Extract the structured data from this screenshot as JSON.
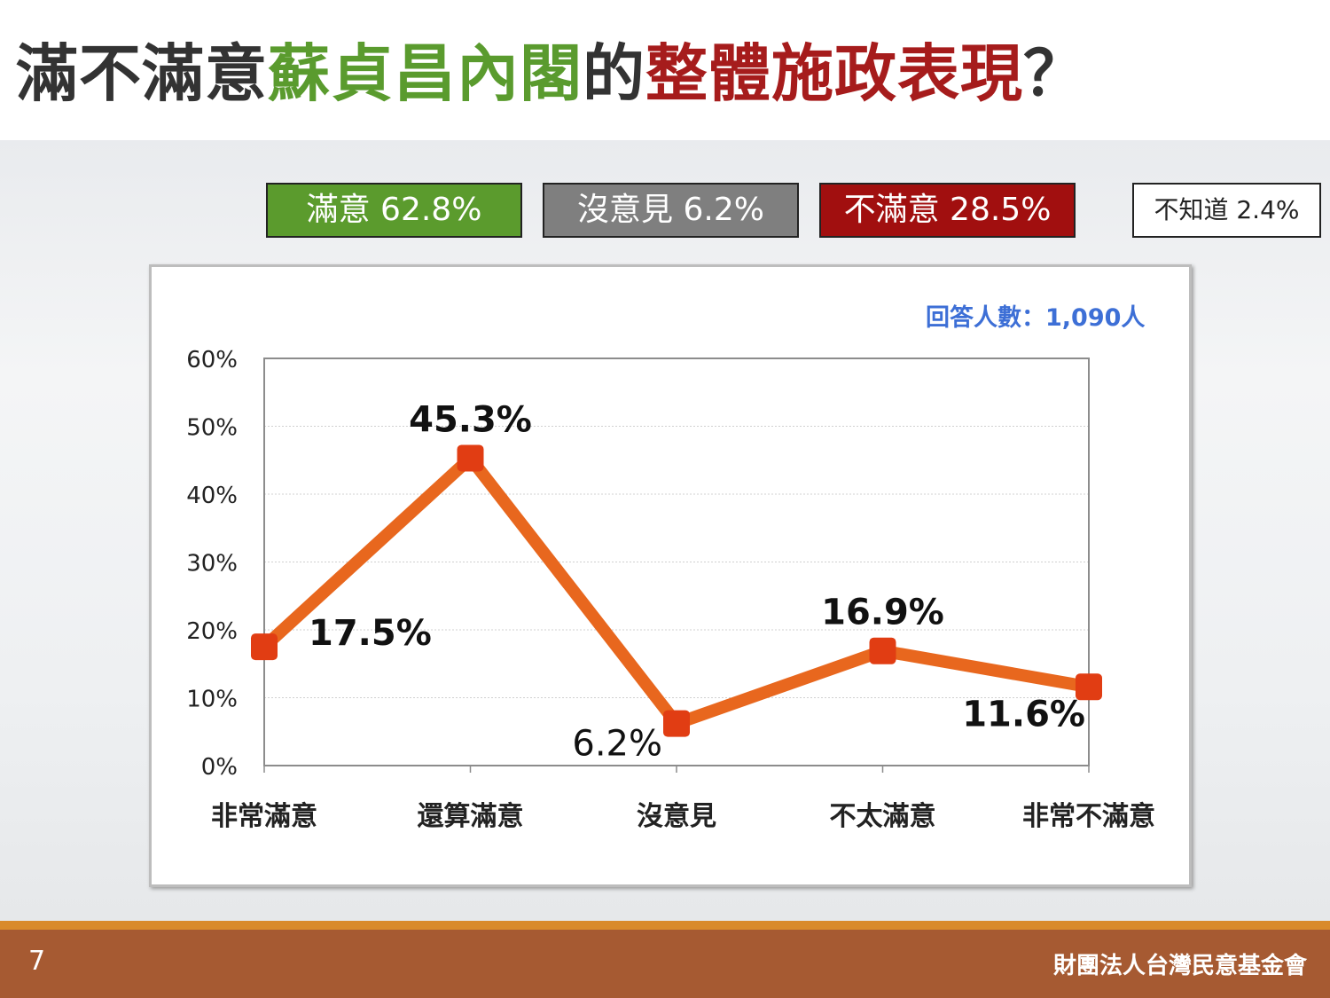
{
  "title": {
    "part1": "滿不滿意",
    "part2": "蘇貞昌內閣",
    "part3": "的",
    "part4": "整體施政表現",
    "part5": "？",
    "colors": {
      "dark": "#333333",
      "green": "#5a9b2e",
      "red": "#a61c1c"
    }
  },
  "legend": [
    {
      "label": "滿意 62.8%",
      "color": "#5b9b2d"
    },
    {
      "label": "沒意見 6.2%",
      "color": "#7f7f7f"
    },
    {
      "label": "不滿意 28.5%",
      "color": "#a10f0f"
    },
    {
      "label": "不知道 2.4%",
      "color": "#ffffff"
    }
  ],
  "respondents": "回答人數：1,090人",
  "chart_data": {
    "type": "line",
    "categories": [
      "非常滿意",
      "還算滿意",
      "沒意見",
      "不太滿意",
      "非常不滿意"
    ],
    "values": [
      17.5,
      45.3,
      6.2,
      16.9,
      11.6
    ],
    "data_labels": [
      "17.5%",
      "45.3%",
      "6.2%",
      "16.9%",
      "11.6%"
    ],
    "y_ticks": [
      "0%",
      "10%",
      "20%",
      "30%",
      "40%",
      "50%",
      "60%"
    ],
    "ylim": [
      0,
      60
    ],
    "grid": true,
    "line_color": "#e8671e",
    "marker_color": "#e13d13"
  },
  "footer": {
    "page_number": "7",
    "organization": "財團法人台灣民意基金會"
  }
}
